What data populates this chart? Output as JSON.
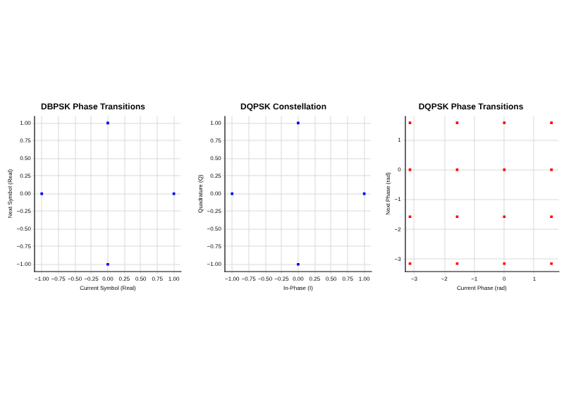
{
  "chart_data": [
    {
      "type": "scatter",
      "title": "DBPSK Phase Transitions",
      "xlabel": "Current Symbol (Real)",
      "ylabel": "Next Symbol (Real)",
      "marker": "square",
      "grid": true,
      "series": [
        {
          "color": "#0000ff",
          "x": [
            -1,
            0,
            0,
            1
          ],
          "values": [
            0,
            1,
            -1,
            0
          ]
        }
      ],
      "xlim": [
        -1.1,
        1.1
      ],
      "ylim": [
        -1.1,
        1.1
      ],
      "xticks": [
        {
          "value": -1,
          "label": "−1.00"
        },
        {
          "value": -0.75,
          "label": "−0.75"
        },
        {
          "value": -0.5,
          "label": "−0.50"
        },
        {
          "value": -0.25,
          "label": "−0.25"
        },
        {
          "value": 0,
          "label": "0.00"
        },
        {
          "value": 0.25,
          "label": "0.25"
        },
        {
          "value": 0.5,
          "label": "0.50"
        },
        {
          "value": 0.75,
          "label": "0.75"
        },
        {
          "value": 1,
          "label": "1.00"
        }
      ],
      "yticks": [
        {
          "value": -1,
          "label": "−1.00"
        },
        {
          "value": -0.75,
          "label": "−0.75"
        },
        {
          "value": -0.5,
          "label": "−0.50"
        },
        {
          "value": -0.25,
          "label": "−0.25"
        },
        {
          "value": 0,
          "label": "0.00"
        },
        {
          "value": 0.25,
          "label": "0.25"
        },
        {
          "value": 0.5,
          "label": "0.50"
        },
        {
          "value": 0.75,
          "label": "0.75"
        },
        {
          "value": 1,
          "label": "1.00"
        }
      ]
    },
    {
      "type": "scatter",
      "title": "DQPSK Constellation",
      "xlabel": "In-Phase (I)",
      "ylabel": "Quadrature (Q)",
      "marker": "square",
      "grid": true,
      "series": [
        {
          "color": "#0000ff",
          "x": [
            -1,
            0,
            0,
            1
          ],
          "values": [
            0,
            1,
            -1,
            0
          ]
        }
      ],
      "xlim": [
        -1.1,
        1.1
      ],
      "ylim": [
        -1.1,
        1.1
      ],
      "xticks": [
        {
          "value": -1,
          "label": "−1.00"
        },
        {
          "value": -0.75,
          "label": "−0.75"
        },
        {
          "value": -0.5,
          "label": "−0.50"
        },
        {
          "value": -0.25,
          "label": "−0.25"
        },
        {
          "value": 0,
          "label": "0.00"
        },
        {
          "value": 0.25,
          "label": "0.25"
        },
        {
          "value": 0.5,
          "label": "0.50"
        },
        {
          "value": 0.75,
          "label": "0.75"
        },
        {
          "value": 1,
          "label": "1.00"
        }
      ],
      "yticks": [
        {
          "value": -1,
          "label": "−1.00"
        },
        {
          "value": -0.75,
          "label": "−0.75"
        },
        {
          "value": -0.5,
          "label": "−0.50"
        },
        {
          "value": -0.25,
          "label": "−0.25"
        },
        {
          "value": 0,
          "label": "0.00"
        },
        {
          "value": 0.25,
          "label": "0.25"
        },
        {
          "value": 0.5,
          "label": "0.50"
        },
        {
          "value": 0.75,
          "label": "0.75"
        },
        {
          "value": 1,
          "label": "1.00"
        }
      ]
    },
    {
      "type": "scatter",
      "title": "DQPSK Phase Transitions",
      "xlabel": "Current Phase (rad)",
      "ylabel": "Next Phase (rad)",
      "marker": "square",
      "grid": true,
      "series": [
        {
          "color": "#ff0000",
          "x": [
            -3.14,
            -3.14,
            -3.14,
            -3.14,
            -1.57,
            -1.57,
            -1.57,
            -1.57,
            0,
            0,
            0,
            0,
            1.57,
            1.57,
            1.57,
            1.57
          ],
          "values": [
            -3.14,
            -1.57,
            0,
            1.57,
            -3.14,
            -1.57,
            0,
            1.57,
            -3.14,
            -1.57,
            0,
            1.57,
            -3.14,
            -1.57,
            0,
            1.57
          ]
        }
      ],
      "xlim": [
        -3.3,
        1.8
      ],
      "ylim": [
        -3.4,
        1.8
      ],
      "xticks": [
        {
          "value": -3,
          "label": "−3"
        },
        {
          "value": -2,
          "label": "−2"
        },
        {
          "value": -1,
          "label": "−1"
        },
        0,
        1
      ],
      "yticks": [
        {
          "value": -3,
          "label": "−3"
        },
        {
          "value": -2,
          "label": "−2"
        },
        {
          "value": -1,
          "label": "−1"
        },
        0,
        1
      ]
    }
  ]
}
